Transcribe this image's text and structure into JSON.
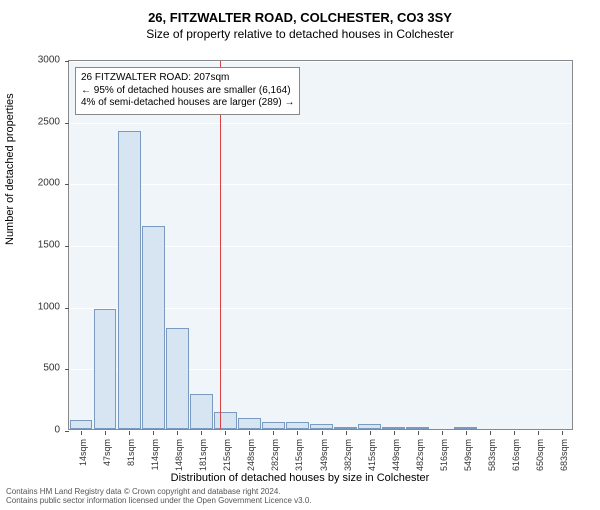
{
  "title_main": "26, FITZWALTER ROAD, COLCHESTER, CO3 3SY",
  "title_sub": "Size of property relative to detached houses in Colchester",
  "y_axis_label": "Number of detached properties",
  "x_axis_label": "Distribution of detached houses by size in Colchester",
  "footer_line1": "Contains HM Land Registry data © Crown copyright and database right 2024.",
  "footer_line2": "Contains public sector information licensed under the Open Government Licence v3.0.",
  "annotation": {
    "line1": "26 FITZWALTER ROAD: 207sqm",
    "line2": "← 95% of detached houses are smaller (6,164)",
    "line3": "4% of semi-detached houses are larger (289) →"
  },
  "chart": {
    "type": "histogram",
    "background_color": "#f0f5fa",
    "grid_color": "#ffffff",
    "axis_color": "#888888",
    "bar_fill": "#d7e4f2",
    "bar_stroke": "#7a9ac0",
    "marker_color": "#d94040",
    "marker_value_sqm": 207,
    "title_fontsize": 13,
    "subtitle_fontsize": 12,
    "label_fontsize": 11,
    "tick_fontsize": 10,
    "y": {
      "min": 0,
      "max": 3000,
      "ticks": [
        0,
        500,
        1000,
        1500,
        2000,
        2500,
        3000
      ]
    },
    "x": {
      "categories": [
        "14sqm",
        "47sqm",
        "81sqm",
        "114sqm",
        "148sqm",
        "181sqm",
        "215sqm",
        "248sqm",
        "282sqm",
        "315sqm",
        "349sqm",
        "382sqm",
        "415sqm",
        "449sqm",
        "482sqm",
        "516sqm",
        "549sqm",
        "583sqm",
        "616sqm",
        "650sqm",
        "683sqm"
      ]
    },
    "bars": [
      70,
      970,
      2420,
      1650,
      820,
      280,
      140,
      90,
      60,
      60,
      40,
      10,
      40,
      10,
      10,
      0,
      10,
      0,
      0,
      0,
      0
    ]
  }
}
